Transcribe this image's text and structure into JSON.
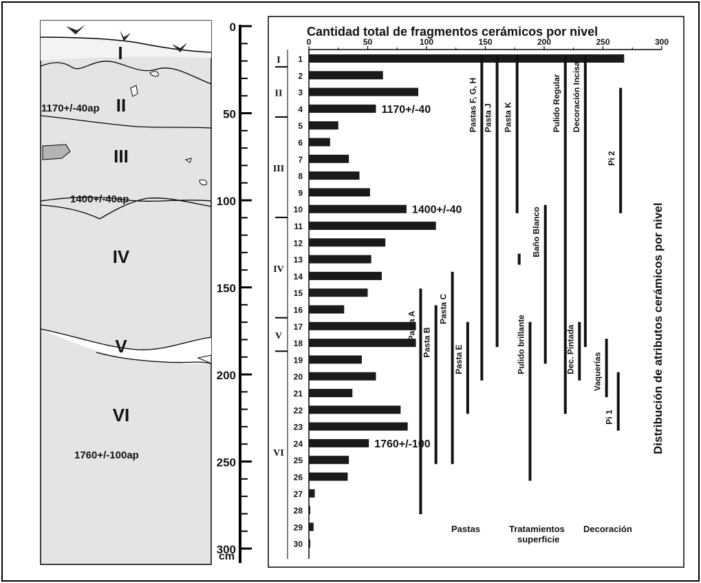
{
  "chart_data": {
    "type": "bar",
    "title": "Cantidad total de fragmentos cerámicos por nivel",
    "right_axis_title": "Distribución de atributos cerámicos por nivel",
    "x_ticks": [
      "0",
      "50",
      "100",
      "150",
      "200",
      "250",
      "300"
    ],
    "xlim": [
      0,
      300
    ],
    "levels": [
      "1",
      "2",
      "3",
      "4",
      "5",
      "6",
      "7",
      "8",
      "9",
      "10",
      "11",
      "12",
      "13",
      "14",
      "15",
      "16",
      "17",
      "18",
      "19",
      "20",
      "21",
      "22",
      "23",
      "24",
      "25",
      "26",
      "27",
      "28",
      "29",
      "30"
    ],
    "fragment_counts": [
      268,
      63,
      93,
      57,
      25,
      18,
      34,
      43,
      52,
      83,
      108,
      65,
      53,
      62,
      50,
      30,
      91,
      91,
      45,
      57,
      37,
      78,
      84,
      51,
      34,
      33,
      5,
      1,
      4,
      1
    ],
    "date_annotations": [
      {
        "text": "1170+/-40",
        "level": 4
      },
      {
        "text": "1400+/-40",
        "level": 10
      },
      {
        "text": "1760+/-100",
        "level": 24
      }
    ],
    "layers": [
      {
        "roman": "I",
        "from_level": 1,
        "to_level": 1
      },
      {
        "roman": "II",
        "from_level": 2,
        "to_level": 4
      },
      {
        "roman": "III",
        "from_level": 5,
        "to_level": 10
      },
      {
        "roman": "IV",
        "from_level": 11,
        "to_level": 16
      },
      {
        "roman": "V",
        "from_level": 17,
        "to_level": 18
      },
      {
        "roman": "VI",
        "from_level": 19,
        "to_level": 30
      }
    ],
    "attributes": [
      {
        "name": "Pasta A",
        "x": 95,
        "from_level": 15,
        "to_level": 28
      },
      {
        "name": "Pasta B",
        "x": 108,
        "from_level": 16,
        "to_level": 25
      },
      {
        "name": "Pasta C",
        "x": 122,
        "from_level": 14,
        "to_level": 25
      },
      {
        "name": "Pasta E",
        "x": 135,
        "from_level": 17,
        "to_level": 22
      },
      {
        "name": "Pastas  F, G, H",
        "x": 147,
        "from_level": 1,
        "to_level": 20
      },
      {
        "name": "Pasta J",
        "x": 160,
        "from_level": 1,
        "to_level": 18
      },
      {
        "name": "Pasta K",
        "x": 177,
        "from_level": 1,
        "to_level": 10
      },
      {
        "name": "Pulido brillante",
        "x": 188,
        "from_level": 17,
        "to_level": 26
      },
      {
        "name": "Baño Blanco",
        "x": 201,
        "from_level": 10,
        "to_level": 19,
        "extra_segments": [
          [
            13,
            13
          ]
        ]
      },
      {
        "name": "Pulido Regular",
        "x": 218,
        "from_level": 1,
        "to_level": 22
      },
      {
        "name": "Dec. Pintada",
        "x": 230,
        "from_level": 17,
        "to_level": 20
      },
      {
        "name": "Decoración Incisa",
        "x": 235,
        "from_level": 1,
        "to_level": 18
      },
      {
        "name": "Vaquerías",
        "x": 253,
        "from_level": 18,
        "to_level": 21
      },
      {
        "name": "Pi 1",
        "x": 263,
        "from_level": 20,
        "to_level": 23
      },
      {
        "name": "Pi 2",
        "x": 265,
        "from_level": 3,
        "to_level": 10
      }
    ],
    "group_labels": [
      "Pastas",
      "Tratamientos superficie",
      "Decoración"
    ]
  },
  "profile": {
    "layer_labels": [
      "I",
      "II",
      "III",
      "IV",
      "V",
      "VI"
    ],
    "dates": [
      "1170+/-40ap",
      "1400+/-40ap",
      "1760+/-100ap"
    ],
    "depth_ticks": [
      "0",
      "50",
      "100",
      "150",
      "200",
      "250",
      "300"
    ],
    "depth_unit": "cm"
  }
}
